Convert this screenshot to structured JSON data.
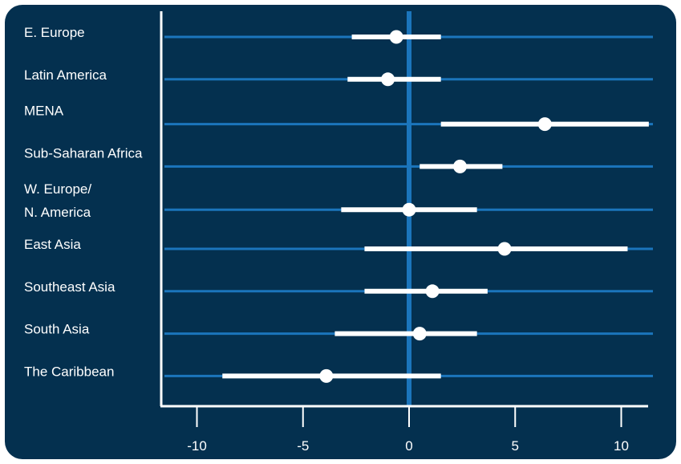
{
  "chart_data": {
    "type": "forest",
    "title": "",
    "xlabel": "",
    "ylabel": "",
    "xlim": [
      -11.5,
      11.3
    ],
    "xticks": [
      -10,
      -5,
      0,
      5,
      10
    ],
    "xtick_labels": [
      "-10",
      "-5",
      "0",
      "5",
      "10"
    ],
    "grid": true,
    "legend": "none",
    "categories": [
      [
        "E. Europe"
      ],
      [
        "Latin America"
      ],
      [
        "MENA"
      ],
      [
        "Sub-Saharan Africa"
      ],
      [
        "W. Europe/",
        "N. America"
      ],
      [
        "East Asia"
      ],
      [
        "Southeast Asia"
      ],
      [
        "South Asia"
      ],
      [
        "The Caribbean"
      ]
    ],
    "estimates": [
      -0.6,
      -1.0,
      6.4,
      2.4,
      0.0,
      4.5,
      1.1,
      0.5,
      -3.9
    ],
    "ci_low": [
      -2.7,
      -2.9,
      1.5,
      0.5,
      -3.2,
      -2.1,
      -2.1,
      -3.5,
      -8.8
    ],
    "ci_high": [
      1.5,
      1.5,
      11.3,
      4.4,
      3.2,
      10.3,
      3.7,
      3.2,
      1.5
    ],
    "colors": {
      "background": "#04304f",
      "gridline": "#1b75bc",
      "zero_line": "#1b75bc",
      "interval": "#ffffff",
      "point": "#ffffff",
      "axis": "#ffffff",
      "text": "#ffffff"
    }
  }
}
